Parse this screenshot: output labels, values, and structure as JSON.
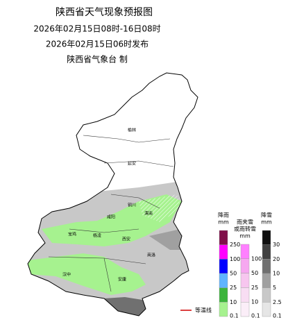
{
  "header": {
    "title": "陕西省天气现象预报图",
    "period": "2026年02月15日08时-16日08时",
    "issued": "2026年02月15日06时发布",
    "agency": "陕西省气象台 制"
  },
  "cities": [
    {
      "label": "榆林",
      "pos": "north"
    },
    {
      "label": "延安",
      "pos": "north"
    },
    {
      "label": "铜川",
      "pos": "center"
    },
    {
      "label": "渭南",
      "pos": "center"
    },
    {
      "label": "咸阳",
      "pos": "center"
    },
    {
      "label": "杨凌",
      "pos": "center"
    },
    {
      "label": "西安",
      "pos": "center"
    },
    {
      "label": "宝鸡",
      "pos": "west"
    },
    {
      "label": "商洛",
      "pos": "east"
    },
    {
      "label": "汉中",
      "pos": "south"
    },
    {
      "label": "安康",
      "pos": "south"
    }
  ],
  "legend": [
    {
      "title": [
        "降雨",
        "mm"
      ],
      "labels": [
        "250",
        "100",
        "50",
        "25",
        "10",
        "0.1"
      ],
      "colors": [
        "#80104a",
        "#ff00ff",
        "#0000ff",
        "#5fb4ff",
        "#3cb43c",
        "#a6f28f"
      ]
    },
    {
      "title": [
        "雨夹雪",
        "或雨转雪",
        "mm"
      ],
      "labels": [
        "100",
        "50",
        "25",
        "10",
        "0.1"
      ],
      "colors": [
        "#ff80ff",
        "#f6a8f0",
        "#f7c6ef",
        "#f8ddf3",
        "#fbeef8"
      ]
    },
    {
      "title": [
        "降雪",
        "mm"
      ],
      "labels": [
        "30",
        "20",
        "10",
        "5",
        "2.5",
        "0.1"
      ],
      "colors": [
        "#101010",
        "#404040",
        "#707070",
        "#a0a0a0",
        "#c8c8c8",
        "#e6e6e6"
      ]
    }
  ],
  "isotherm": "等温线"
}
